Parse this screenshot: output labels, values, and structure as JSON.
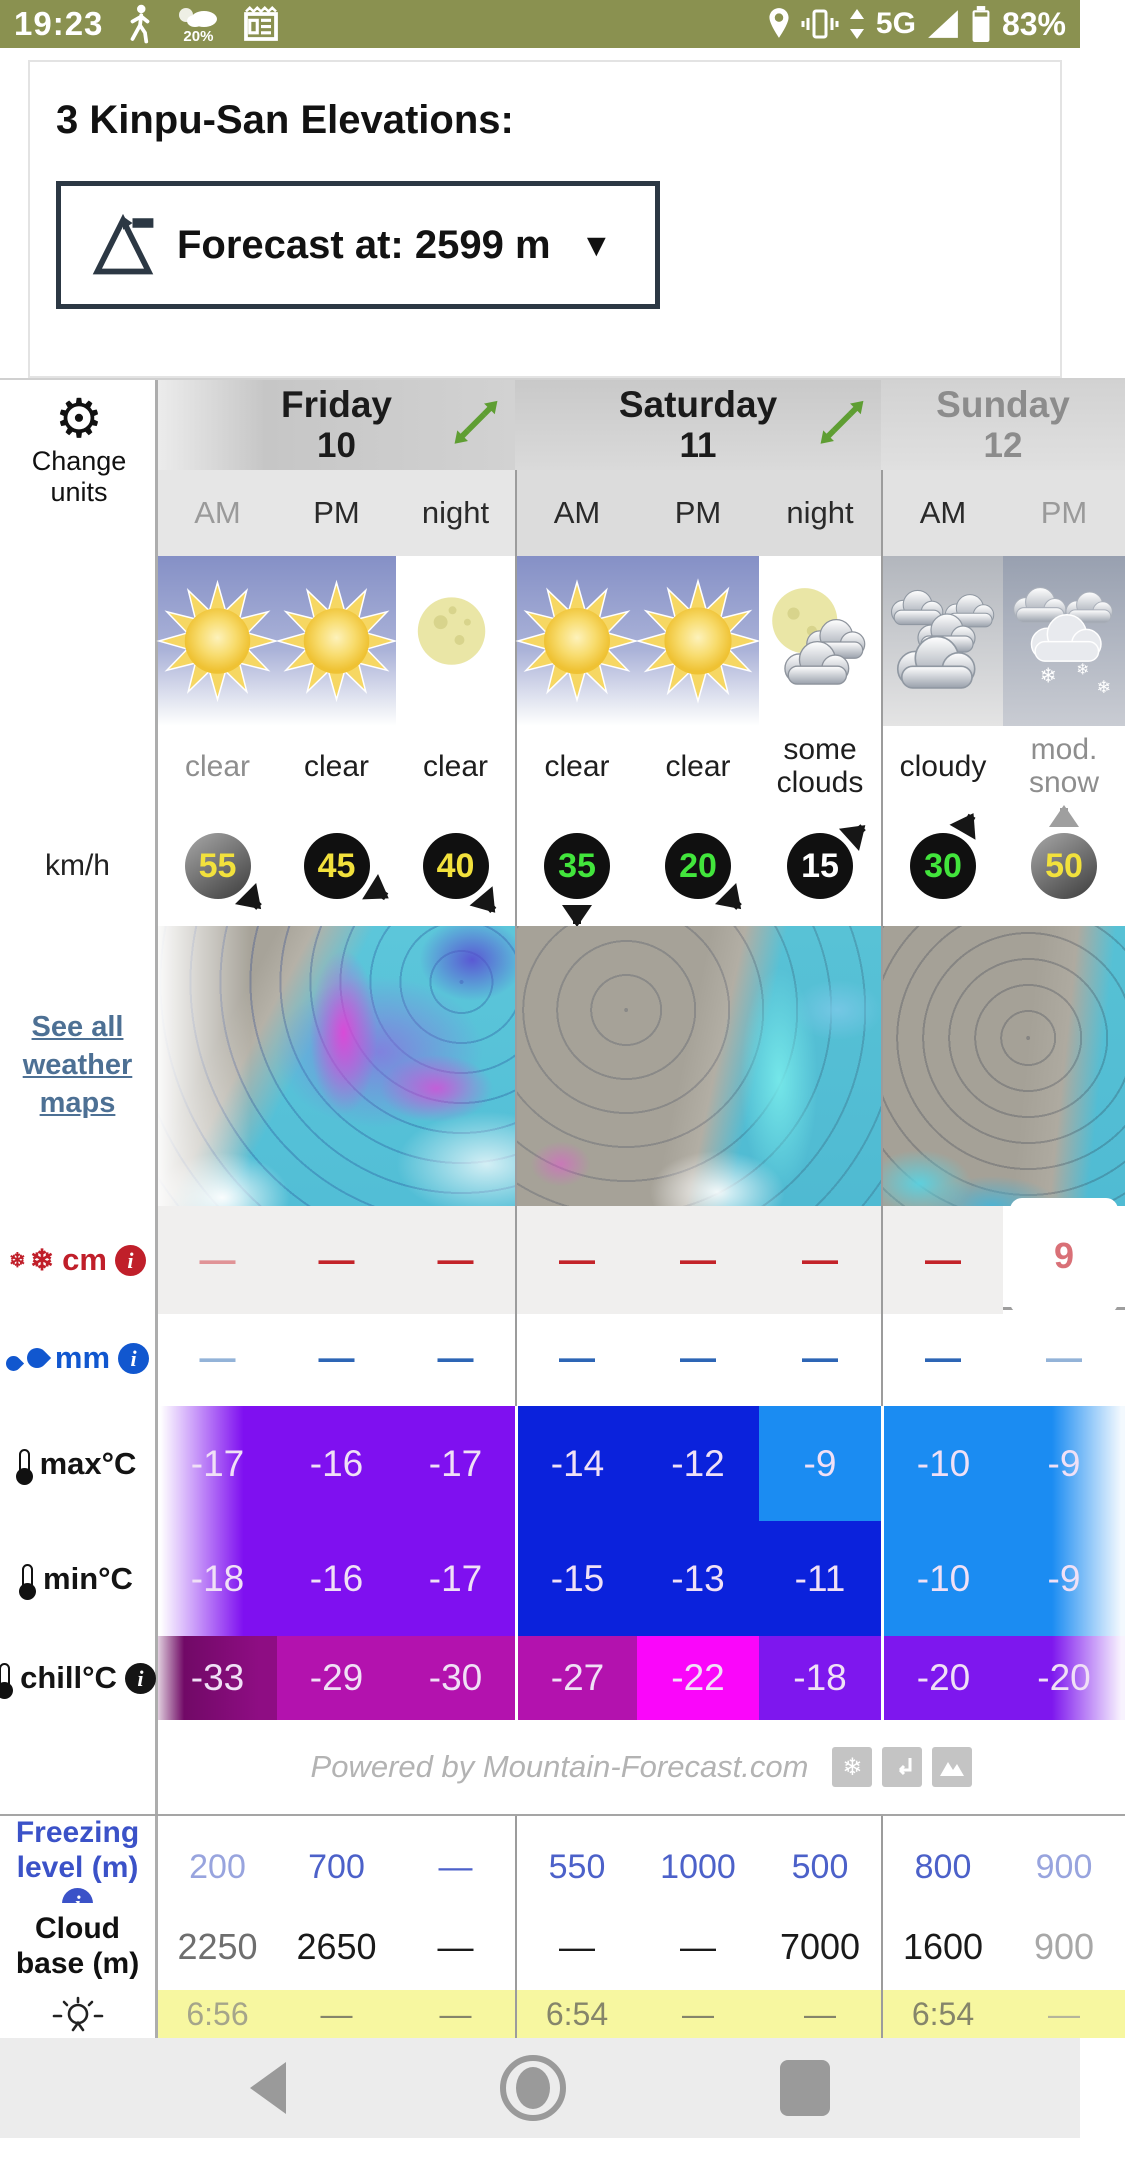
{
  "status_bar": {
    "time": "19:23",
    "weather_pct": "20%",
    "network": "5G",
    "battery": "83%"
  },
  "header": {
    "title": "3 Kinpu-San Elevations:",
    "elevation_button": "Forecast at: 2599 m",
    "caret": "▼"
  },
  "sidebar": {
    "change_units": "Change units",
    "wind_unit": "km/h",
    "see_maps": "See all weather maps",
    "snow_label": "cm",
    "rain_label": "mm",
    "max_label": "max°C",
    "min_label": "min°C",
    "chill_label": "chill°C",
    "freezing_label": "Freezing level (m)",
    "cloudbase_label": "Cloud base (m)"
  },
  "table": {
    "days": [
      {
        "name": "Friday",
        "date": "10"
      },
      {
        "name": "Saturday",
        "date": "11"
      },
      {
        "name": "Sunday",
        "date": "12"
      }
    ],
    "times": [
      "AM",
      "PM",
      "night",
      "AM",
      "PM",
      "night",
      "AM",
      "PM"
    ],
    "icons": [
      "sun",
      "sun",
      "moon",
      "sun",
      "sun",
      "moon-clouds",
      "clouds",
      "snow-clouds"
    ],
    "conditions": [
      "clear",
      "clear",
      "clear",
      "clear",
      "clear",
      "some clouds",
      "cloudy",
      "mod. snow"
    ],
    "wind": [
      {
        "speed": "55",
        "color": "#f2e13c",
        "angle": 135,
        "faded": true
      },
      {
        "speed": "45",
        "color": "#f2e13c",
        "angle": 122,
        "faded": false
      },
      {
        "speed": "40",
        "color": "#f2e13c",
        "angle": 140,
        "faded": false
      },
      {
        "speed": "35",
        "color": "#42e53c",
        "angle": 180,
        "faded": false
      },
      {
        "speed": "20",
        "color": "#42e53c",
        "angle": 135,
        "faded": false
      },
      {
        "speed": "15",
        "color": "#ffffff",
        "angle": 48,
        "faded": false
      },
      {
        "speed": "30",
        "color": "#42e53c",
        "angle": 30,
        "faded": false
      },
      {
        "speed": "50",
        "color": "#f2e13c",
        "angle": 0,
        "faded": true
      }
    ],
    "snow_cm": [
      "—",
      "—",
      "—",
      "—",
      "—",
      "—",
      "—",
      "9"
    ],
    "rain_mm": [
      "—",
      "—",
      "—",
      "—",
      "—",
      "—",
      "—",
      "—"
    ],
    "max_c": [
      "-17",
      "-16",
      "-17",
      "-14",
      "-12",
      "-9",
      "-10",
      "-9"
    ],
    "max_bg": [
      "#7f10f0",
      "#7f10f0",
      "#7f10f0",
      "#0b22dc",
      "#0b22dc",
      "#1b8cf2",
      "#1b8cf2",
      "#1b8cf2"
    ],
    "min_c": [
      "-18",
      "-16",
      "-17",
      "-15",
      "-13",
      "-11",
      "-10",
      "-9"
    ],
    "min_bg": [
      "#7f10f0",
      "#7f10f0",
      "#7f10f0",
      "#0b22dc",
      "#0b22dc",
      "#0b22dc",
      "#1b8cf2",
      "#1b8cf2"
    ],
    "chill_c": [
      "-33",
      "-29",
      "-30",
      "-27",
      "-22",
      "-18",
      "-20",
      "-20"
    ],
    "chill_bg": [
      "#8e0d83",
      "#b312ae",
      "#b312ae",
      "#b312ae",
      "#fa06fa",
      "#7e17ee",
      "#7e17ee",
      "#7e17ee"
    ],
    "powered": "Powered by Mountain-Forecast.com",
    "freezing": [
      "200",
      "700",
      "—",
      "550",
      "1000",
      "500",
      "800",
      "900"
    ],
    "cloud_base": [
      "2250",
      "2650",
      "—",
      "—",
      "—",
      "7000",
      "1600",
      "900"
    ],
    "sunrise": [
      "6:56",
      "—",
      "—",
      "6:54",
      "—",
      "—",
      "6:54",
      "—"
    ]
  }
}
